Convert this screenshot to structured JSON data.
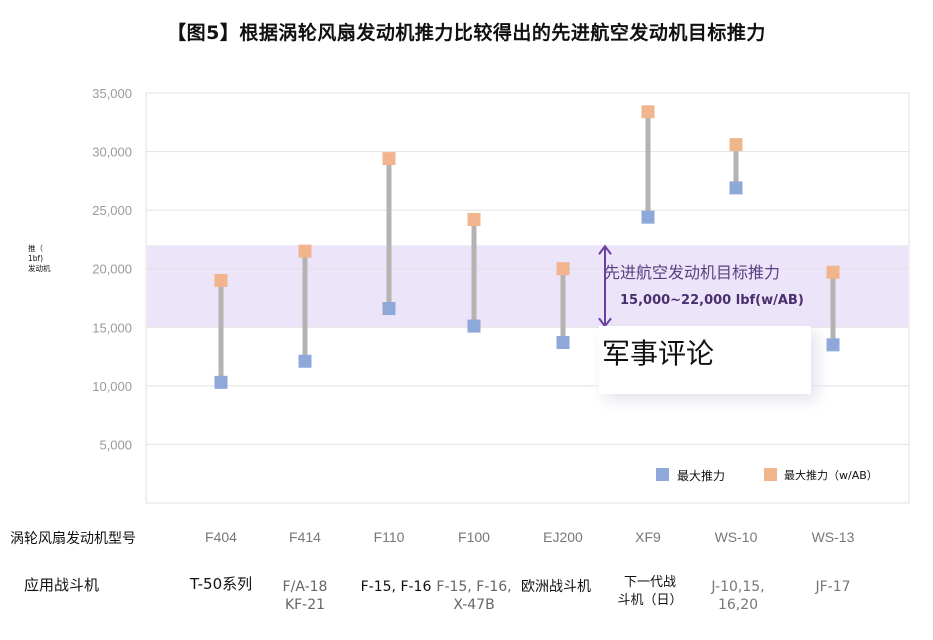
{
  "title": "【图5】根据涡轮风扇发动机推力比较得出的先进航空发动机目标推力",
  "y_axis_title_lines": [
    "推（",
    "1bf)",
    "发动机"
  ],
  "row_labels": {
    "engine_model": "涡轮风扇发动机型号",
    "applied_fighter": "应用战斗机"
  },
  "target_band": {
    "line1": "先进航空发动机目标推力",
    "line2": "15,000~22,000 lbf(w/AB)",
    "color": "#ece4f8",
    "arrow_color": "#6b3fa0"
  },
  "watermark": "军事评论",
  "legend": {
    "max_thrust": "最大推力",
    "max_thrust_ab": "最大推力（w/AB）"
  },
  "colors": {
    "max_thrust": "#8fa8da",
    "max_thrust_ab": "#f1b58e",
    "connector": "#b5b2b2",
    "grid": "#e2e2e2",
    "tick_text": "#9a9a9a"
  },
  "fighters": [
    "T-50系列",
    "F/A-18\nKF-21",
    "F-15, F-16",
    "F-15, F-16,\nX-47B",
    "欧洲战斗机",
    "下一代战\n斗机（日）",
    "J-10,15,\n16,20",
    "JF-17"
  ],
  "chart_data": {
    "type": "range",
    "categories": [
      "F404",
      "F414",
      "F110",
      "F100",
      "EJ200",
      "XF9",
      "WS-10",
      "WS-13"
    ],
    "series": [
      {
        "name": "最大推力",
        "values": [
          10300,
          12100,
          16600,
          15100,
          13700,
          24400,
          26900,
          13500
        ]
      },
      {
        "name": "最大推力（w/AB）",
        "values": [
          19000,
          21500,
          29400,
          24200,
          20000,
          33400,
          30600,
          19700
        ]
      }
    ],
    "band": [
      15000,
      22000
    ],
    "ylim": [
      0,
      35000
    ],
    "yticks": [
      5000,
      10000,
      15000,
      20000,
      25000,
      30000,
      35000
    ],
    "ytick_labels": [
      "5,000",
      "10,000",
      "15,000",
      "20,000",
      "25,000",
      "30,000",
      "35,000"
    ],
    "grid": true,
    "legend_position": "bottom-right"
  }
}
